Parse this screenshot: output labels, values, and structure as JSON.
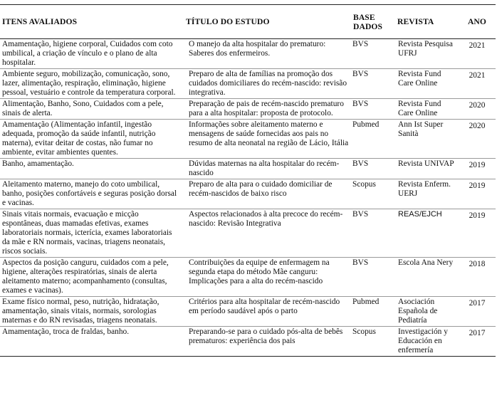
{
  "headers": {
    "itens": "ITENS AVALIADOS",
    "titulo": "TÍTULO DO ESTUDO",
    "base": "BASE DADOS",
    "revista": "REVISTA",
    "ano": "ANO"
  },
  "rows": [
    {
      "itens": "Amamentação, higiene corporal, Cuidados com coto umbilical, a criação de vínculo e o plano de alta hospitalar.",
      "titulo": "O manejo da alta hospitalar do prematuro: Saberes dos enfermeiros.",
      "base": "BVS",
      "revista": "Revista Pesquisa UFRJ",
      "ano": "2021"
    },
    {
      "itens": "Ambiente seguro, mobilização, comunicação, sono, lazer, alimentação, respiração, eliminação, higiene pessoal, vestuário e controle da temperatura corporal.",
      "titulo": "Preparo de alta de famílias na promoção dos cuidados domiciliares do recém-nascido: revisão integrativa.",
      "base": "BVS",
      "revista": "Revista Fund Care Online",
      "ano": "2021"
    },
    {
      "itens": "Alimentação, Banho, Sono, Cuidados com a pele, sinais de alerta.",
      "titulo": "Preparação de pais de recém-nascido prematuro para a alta hospitalar: proposta de protocolo.",
      "base": "BVS",
      "revista": "Revista Fund Care Online",
      "ano": "2020"
    },
    {
      "itens": "Amamentação (Alimentação infantil, ingestão adequada, promoção da saúde infantil, nutrição materna), evitar deitar de costas, não fumar no ambiente, evitar ambientes quentes.",
      "titulo": "Informações sobre aleitamento materno e mensagens de saúde fornecidas aos pais no resumo de alta neonatal na região de Lácio, Itália",
      "base": "Pubmed",
      "revista": "Ann Ist Super Sanità",
      "ano": "2020"
    },
    {
      "itens": "Banho, amamentação.",
      "titulo": "Dúvidas maternas na alta hospitalar do recém-nascido",
      "base": "BVS",
      "revista": "Revista UNIVAP",
      "ano": "2019"
    },
    {
      "itens": "Aleitamento materno, manejo do coto umbilical, banho, posições confortáveis e seguras posição dorsal e vacinas.",
      "titulo": "Preparo de alta para o cuidado domiciliar de recém-nascidos de baixo risco",
      "base": "Scopus",
      "revista": "Revista Enferm. UERJ",
      "ano": "2019"
    },
    {
      "itens": "Sinais vitais normais, evacuação e micção espontâneas, duas mamadas efetivas, exames laboratoriais normais, icterícia, exames laboratoriais da mãe e RN normais, vacinas, triagens neonatais, riscos sociais.",
      "titulo": "Aspectos relacionados à alta precoce do recém-nascido: Revisão Integrativa",
      "base": "BVS",
      "revista": "REAS/EJCH",
      "ano": "2019",
      "revista_sans": true
    },
    {
      "itens": "Aspectos da posição canguru, cuidados com a pele, higiene, alterações respiratórias, sinais de alerta aleitamento materno; acompanhamento (consultas, exames e vacinas).",
      "titulo": "Contribuições da equipe de enfermagem na segunda etapa do método Mãe canguru: Implicações para a alta do recém-nascido",
      "base": "BVS",
      "revista": "Escola Ana Nery",
      "ano": "2018"
    },
    {
      "itens": "Exame físico normal, peso, nutrição, hidratação, amamentação, sinais vitais, normais, sorologias maternas e do RN revisadas, triagens neonatais.",
      "titulo": "Critérios para alta hospitalar de recém-nascido em período saudável após o parto",
      "base": "Pubmed",
      "revista": "Asociación Española de Pediatría",
      "ano": "2017"
    },
    {
      "itens": "Amamentação, troca de fraldas, banho.",
      "titulo": "Preparando-se para o cuidado pós-alta de bebês prematuros: experiência dos pais",
      "base": "Scopus",
      "revista": "Investigación y Educación en enfermería",
      "ano": "2017"
    }
  ]
}
